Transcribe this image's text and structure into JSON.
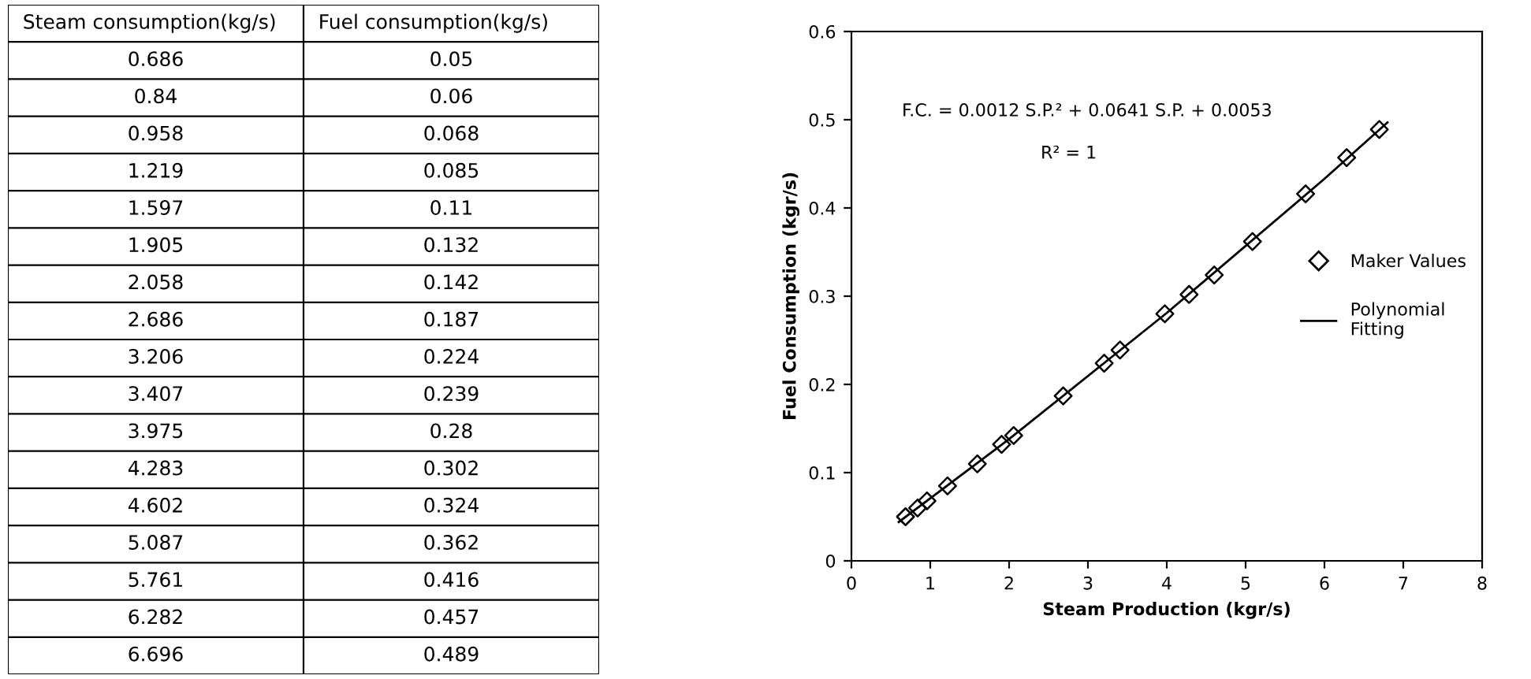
{
  "chart_data": [
    {
      "type": "other",
      "annotations": [
        "Steam consumption(kg/s)",
        "Fuel consumption(kg/s)",
        "0.686",
        "0.05",
        "0.84",
        "0.06",
        "0.958",
        "0.068",
        "1.219",
        "0.085",
        "1.597",
        "0.11",
        "1.905",
        "0.132",
        "2.058",
        "0.142",
        "2.686",
        "0.187",
        "3.206",
        "0.224",
        "3.407",
        "0.239",
        "3.975",
        "0.28",
        "4.283",
        "0.302",
        "4.602",
        "0.324",
        "5.087",
        "0.362",
        "5.761",
        "0.416",
        "6.282",
        "0.457",
        "6.696",
        "0.489"
      ]
    },
    {
      "type": "scatter",
      "xlabel": "Steam Production (kgr/s)",
      "ylabel": "Fuel Consumption (kgr/s)",
      "annotations": [
        "F.C. = 0.0012 S.P.² + 0.0641 S.P. + 0.0053",
        "R² = 1"
      ],
      "series": [
        {
          "name": "Maker Values",
          "type": "scatter",
          "marker": "diamond",
          "color": "#000000",
          "x": [
            0.686,
            0.84,
            0.958,
            1.219,
            1.597,
            1.905,
            2.058,
            2.686,
            3.206,
            3.407,
            3.975,
            4.283,
            4.602,
            5.087,
            5.761,
            6.282,
            6.696
          ],
          "values": [
            0.05,
            0.06,
            0.068,
            0.085,
            0.11,
            0.132,
            0.142,
            0.187,
            0.224,
            0.239,
            0.28,
            0.302,
            0.324,
            0.362,
            0.416,
            0.457,
            0.489
          ]
        },
        {
          "name": "Polynomial\nFitting",
          "type": "line",
          "line_style": "solid",
          "color": "#000000",
          "x": [
            0.6,
            2,
            4,
            6,
            6.8
          ],
          "values": [
            0.044,
            0.138,
            0.281,
            0.433,
            0.497
          ]
        }
      ],
      "xlim": [
        0,
        8
      ],
      "xticks": [
        0,
        1,
        2,
        3,
        4,
        5,
        6,
        7,
        8
      ],
      "ylim": [
        0,
        0.6
      ],
      "yticks": [
        0,
        0.1,
        0.2,
        0.3,
        0.4,
        0.5,
        0.6
      ],
      "grid": false,
      "legend": "right"
    }
  ]
}
